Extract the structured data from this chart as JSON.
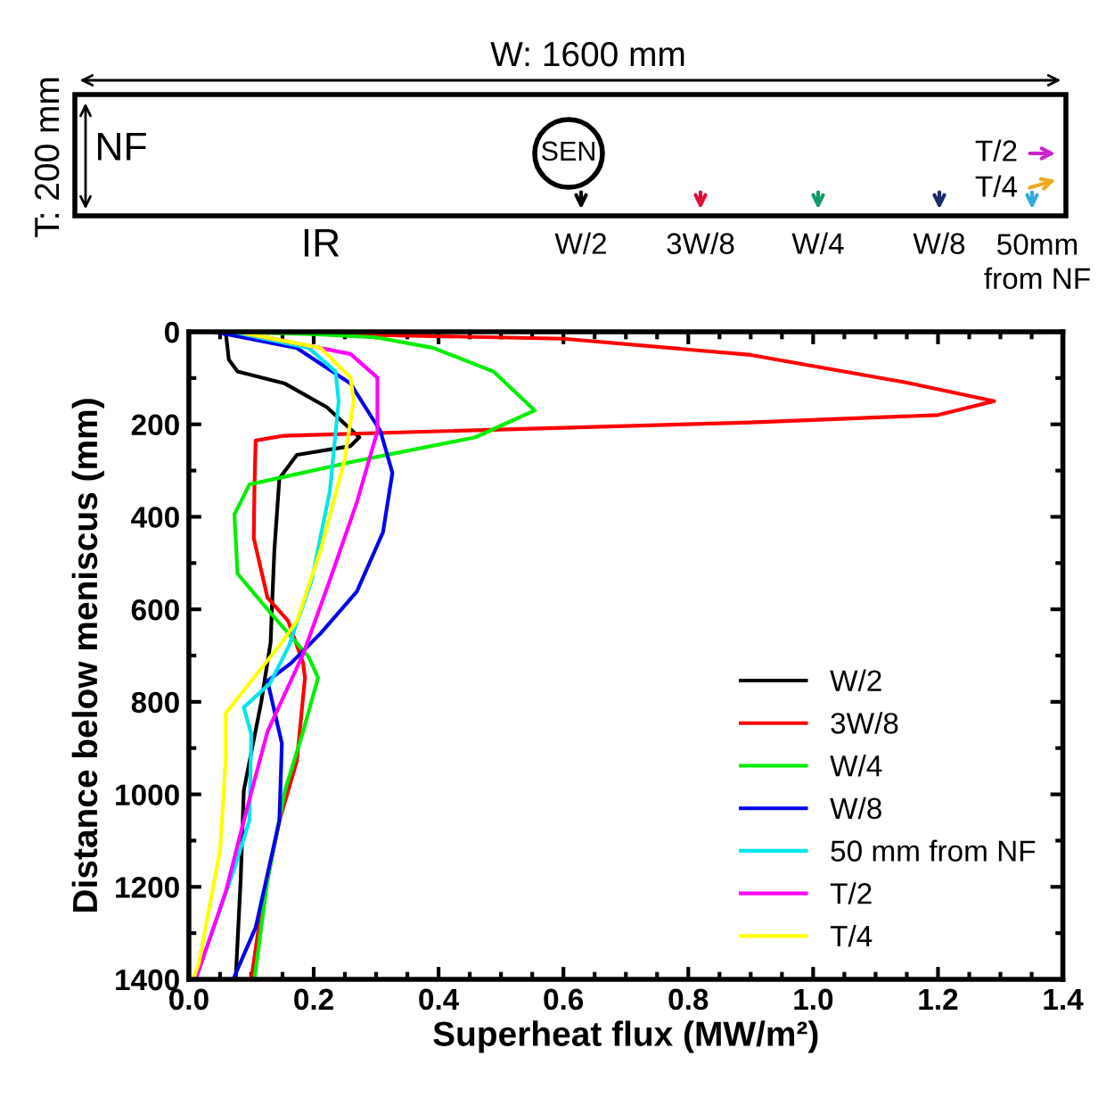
{
  "chart_data": {
    "type": "line",
    "xlabel": "Superheat flux (MW/m²)",
    "ylabel": "Distance below meniscus (mm)",
    "xlim": [
      0,
      1.4
    ],
    "xticks": [
      {
        "value": 0,
        "label": "0.0"
      },
      0.2,
      0.4,
      0.6,
      0.8,
      {
        "value": 1,
        "label": "1.0"
      },
      1.2,
      1.4
    ],
    "ylim": [
      1400,
      0
    ],
    "yticks": [
      0,
      200,
      400,
      600,
      800,
      1000,
      1200,
      1400
    ],
    "grid": false,
    "legend": "bottom right",
    "line_style": "solid",
    "marker": "none",
    "annotations": [
      "W: 1600 mm",
      "T: 200 mm",
      "NF",
      "SEN",
      "IR",
      "W/2",
      "3W/8",
      "W/4",
      "W/8",
      "50mm\nfrom NF",
      "T/2",
      "T/4"
    ],
    "series": [
      {
        "name": "W/2",
        "color": "#000000",
        "x": [
          0.059,
          0.064,
          0.078,
          0.154,
          0.221,
          0.273,
          0.259,
          0.173,
          0.145,
          0.137,
          0.133,
          0.131,
          0.116,
          0.088,
          0.083,
          0.075
        ],
        "values": [
          0,
          60,
          86,
          112,
          163,
          228,
          247,
          266,
          317,
          472,
          600,
          671,
          800,
          992,
          1185,
          1400
        ]
      },
      {
        "name": "3W/8",
        "color": "#ff0000",
        "x": [
          0.05,
          0.6,
          0.9,
          1.15,
          1.29,
          1.2,
          0.9,
          0.4,
          0.15,
          0.107,
          0.105,
          0.104,
          0.126,
          0.159,
          0.183,
          0.186,
          0.173,
          0.145,
          0.116,
          0.1
        ],
        "values": [
          0,
          15,
          50,
          110,
          150,
          180,
          196,
          215,
          225,
          235,
          343,
          446,
          575,
          625,
          716,
          748,
          928,
          1057,
          1250,
          1400
        ]
      },
      {
        "name": "W/4",
        "color": "#00ee00",
        "x": [
          0.06,
          0.2,
          0.3,
          0.392,
          0.488,
          0.554,
          0.459,
          0.269,
          0.097,
          0.073,
          0.078,
          0.126,
          0.192,
          0.207,
          0.183,
          0.154,
          0.126,
          0.105
        ],
        "values": [
          0,
          5,
          12,
          35,
          86,
          170,
          228,
          279,
          330,
          395,
          523,
          600,
          703,
          748,
          864,
          992,
          1185,
          1400
        ]
      },
      {
        "name": "W/8",
        "color": "#0000ee",
        "x": [
          0.04,
          0.173,
          0.259,
          0.307,
          0.326,
          0.311,
          0.269,
          0.211,
          0.164,
          0.126,
          0.149,
          0.145,
          0.107,
          0.071
        ],
        "values": [
          0,
          35,
          112,
          215,
          305,
          433,
          562,
          652,
          716,
          755,
          890,
          1057,
          1288,
          1400
        ]
      },
      {
        "name": "50 mm from NF",
        "color": "#00e5ee",
        "x": [
          0.069,
          0.192,
          0.235,
          0.24,
          0.226,
          0.197,
          0.16,
          0.13,
          0.088,
          0.1,
          0.097,
          0.073,
          0.011
        ],
        "values": [
          0,
          35,
          86,
          150,
          343,
          536,
          680,
          760,
          812,
          870,
          1057,
          1160,
          1400
        ]
      },
      {
        "name": "T/2",
        "color": "#ff00ff",
        "x": [
          0.078,
          0.259,
          0.302,
          0.302,
          0.269,
          0.226,
          0.183,
          0.126,
          0.088,
          0.059,
          0.011
        ],
        "values": [
          0,
          48,
          99,
          215,
          369,
          536,
          697,
          864,
          1057,
          1211,
          1400
        ]
      },
      {
        "name": "T/4",
        "color": "#ffff00",
        "x": [
          0.078,
          0.211,
          0.259,
          0.264,
          0.249,
          0.211,
          0.173,
          0.149,
          0.059,
          0.059,
          0.05,
          0.016,
          0.007
        ],
        "values": [
          0,
          35,
          99,
          150,
          279,
          472,
          626,
          671,
          825,
          928,
          1121,
          1365,
          1400
        ]
      }
    ]
  }
}
